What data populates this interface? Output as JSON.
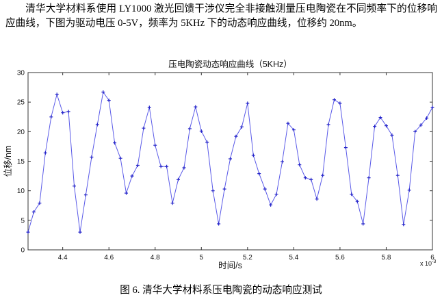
{
  "page": {
    "paragraph": "清华大学材料系使用 LY1000 激光回馈干涉仪完全非接触测量压电陶瓷在不同频率下的位移响应曲线，下图为驱动电压 0-5V，频率为 5KHz 下的动态响应曲线，位移约 20nm。",
    "caption": "图 6. 清华大学材料系压电陶瓷的动态响应测试"
  },
  "chart_data": {
    "type": "line",
    "title": "压电陶瓷动态响应曲线（5KHz）",
    "xlabel": "时间/s",
    "ylabel": "位移/nm",
    "x_exponent": {
      "base": "x 10",
      "power": "-3"
    },
    "xlim": [
      4.25,
      6.0
    ],
    "ylim": [
      0,
      30
    ],
    "xticks": [
      4.4,
      4.6,
      4.8,
      5.0,
      5.2,
      5.4,
      5.6,
      5.8,
      6.0
    ],
    "xtick_labels": [
      "4.4",
      "4.6",
      "4.8",
      "5",
      "5.2",
      "5.4",
      "5.6",
      "5.8",
      "6"
    ],
    "yticks": [
      0,
      5,
      10,
      15,
      20,
      25,
      30
    ],
    "ytick_labels": [
      "0",
      "5",
      "10",
      "15",
      "20",
      "25",
      "30"
    ],
    "grid": false,
    "legend": null,
    "line_color": "#5a5ae8",
    "marker": "+",
    "marker_color": "#2222c8",
    "axis_color": "#333333",
    "x_unit_scale": "1e-3 s",
    "x": [
      4.25,
      4.275,
      4.3,
      4.325,
      4.35,
      4.375,
      4.4,
      4.425,
      4.45,
      4.475,
      4.5,
      4.525,
      4.55,
      4.575,
      4.6,
      4.625,
      4.65,
      4.675,
      4.7,
      4.725,
      4.75,
      4.775,
      4.8,
      4.825,
      4.85,
      4.875,
      4.9,
      4.925,
      4.95,
      4.975,
      5.0,
      5.025,
      5.05,
      5.075,
      5.1,
      5.125,
      5.15,
      5.175,
      5.2,
      5.225,
      5.25,
      5.275,
      5.3,
      5.325,
      5.35,
      5.375,
      5.4,
      5.425,
      5.45,
      5.475,
      5.5,
      5.525,
      5.55,
      5.575,
      5.6,
      5.625,
      5.65,
      5.675,
      5.7,
      5.725,
      5.75,
      5.775,
      5.8,
      5.825,
      5.85,
      5.875,
      5.9,
      5.925,
      5.95,
      5.975,
      6.0
    ],
    "y": [
      3.0,
      6.4,
      7.9,
      16.4,
      22.5,
      26.3,
      23.2,
      23.4,
      10.8,
      3.0,
      9.3,
      15.7,
      21.2,
      26.7,
      25.3,
      18.1,
      15.5,
      9.6,
      12.5,
      14.3,
      20.6,
      24.1,
      17.7,
      14.1,
      14.1,
      7.9,
      11.9,
      13.9,
      20.5,
      24.2,
      20.1,
      18.2,
      10.0,
      4.4,
      10.3,
      15.4,
      19.2,
      20.8,
      24.8,
      16.0,
      12.9,
      10.3,
      7.6,
      9.4,
      14.9,
      21.4,
      20.3,
      14.4,
      12.2,
      11.9,
      8.6,
      12.6,
      21.2,
      25.4,
      24.8,
      17.3,
      9.4,
      8.2,
      4.4,
      12.2,
      20.9,
      22.4,
      21.0,
      19.4,
      12.6,
      4.3,
      10.1,
      20.0,
      21.1,
      22.3,
      24.1
    ]
  }
}
